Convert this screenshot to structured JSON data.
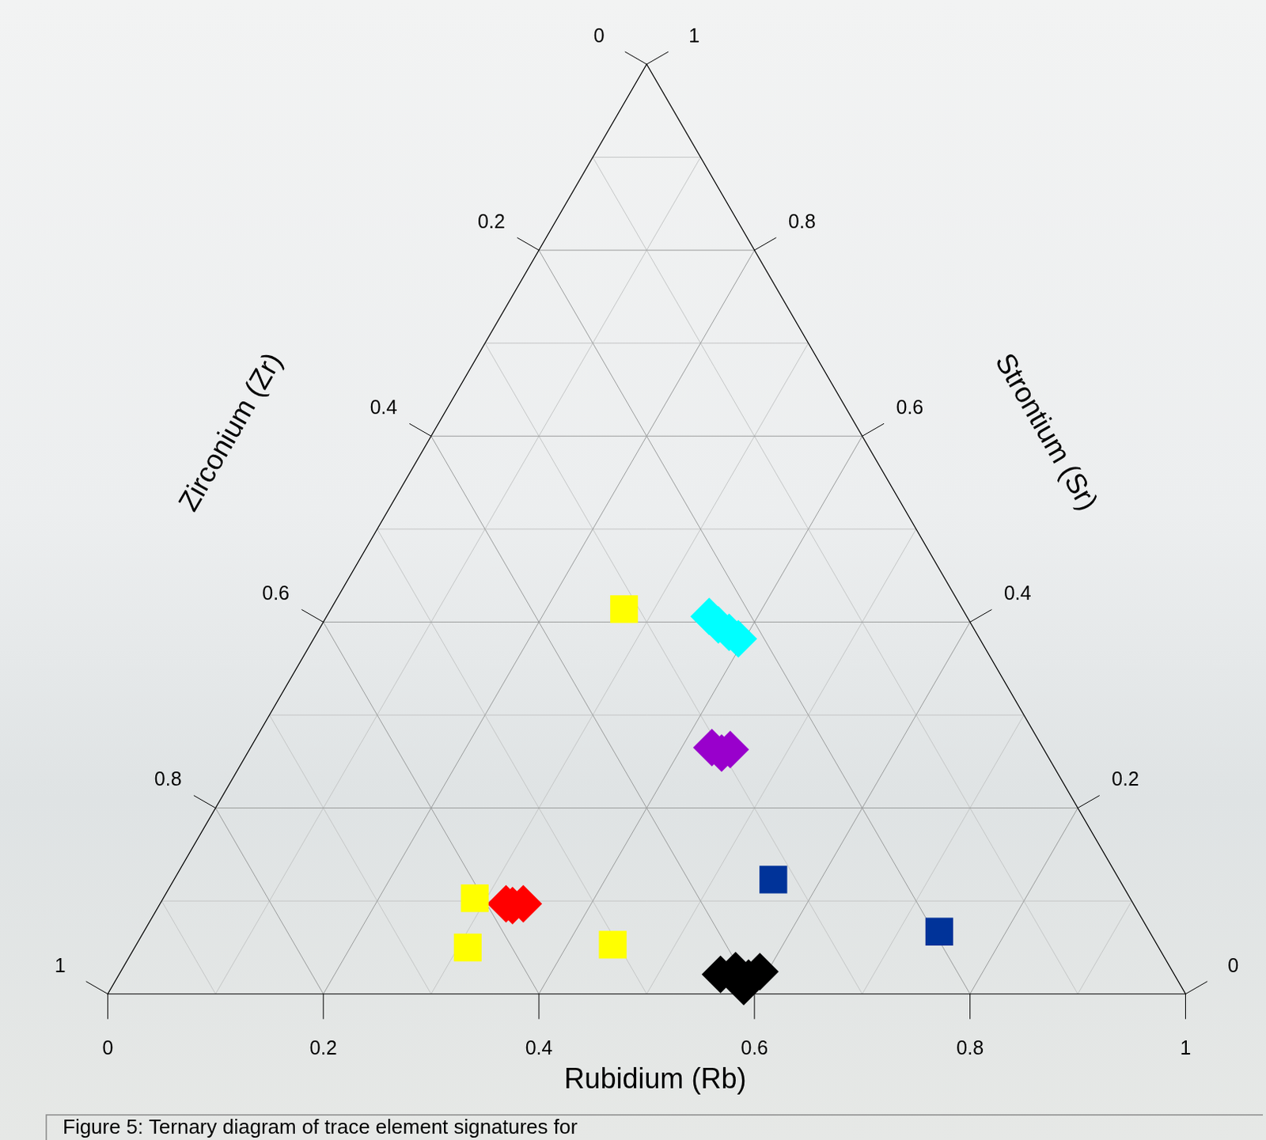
{
  "chart_data": {
    "type": "ternary",
    "caption": "Figure 5: Ternary diagram of trace element signatures for",
    "axis_labels": {
      "rb": "Rubidium (Rb)",
      "sr": "Strontium (Sr)",
      "zr": "Zirconium (Zr)"
    },
    "lim": [
      0,
      1
    ],
    "ticks": [
      0,
      0.2,
      0.4,
      0.6,
      0.8,
      1
    ],
    "minor_ticks": [
      0.1,
      0.3,
      0.5,
      0.7,
      0.9
    ],
    "grid": true,
    "series": [
      {
        "color": "#ffff00",
        "marker": "square",
        "rb": [
          0.272,
          0.289,
          0.309,
          0.442
        ],
        "sr": [
          0.414,
          0.103,
          0.05,
          0.053
        ],
        "zr": [
          0.314,
          0.608,
          0.641,
          0.505
        ]
      },
      {
        "color": "#003399",
        "marker": "square",
        "rb": [
          0.556,
          0.738
        ],
        "sr": [
          0.123,
          0.067
        ],
        "zr": [
          0.321,
          0.195
        ]
      },
      {
        "color": "#00ffff",
        "marker": "diamond",
        "rb": [
          0.355,
          0.368,
          0.382,
          0.394
        ],
        "sr": [
          0.406,
          0.397,
          0.389,
          0.382
        ],
        "zr": [
          0.239,
          0.235,
          0.229,
          0.224
        ]
      },
      {
        "color": "#9900cc",
        "marker": "diamond",
        "rb": [
          0.428,
          0.44,
          0.446
        ],
        "sr": [
          0.265,
          0.259,
          0.263
        ],
        "zr": [
          0.307,
          0.301,
          0.291
        ]
      },
      {
        "color": "#ff0000",
        "marker": "diamond",
        "rb": [
          0.321,
          0.328,
          0.337
        ],
        "sr": [
          0.097,
          0.095,
          0.097
        ],
        "zr": [
          0.582,
          0.577,
          0.566
        ]
      },
      {
        "color": "#000000",
        "marker": "diamond",
        "rb": [
          0.558,
          0.57,
          0.586,
          0.593,
          0.586
        ],
        "sr": [
          0.021,
          0.025,
          0.017,
          0.024,
          0.008
        ],
        "zr": [
          0.421,
          0.405,
          0.397,
          0.383,
          0.406
        ]
      }
    ]
  }
}
